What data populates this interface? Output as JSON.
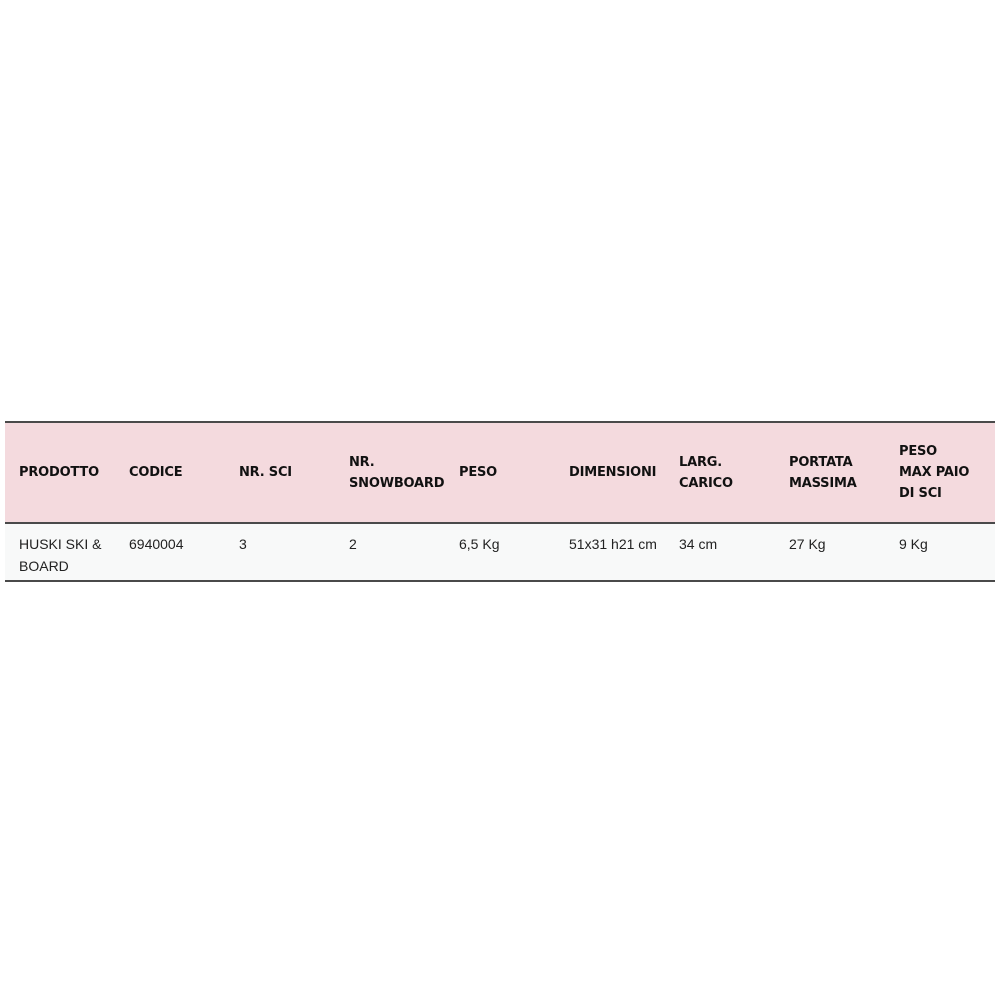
{
  "table": {
    "headers": [
      "PRODOTTO",
      "CODICE",
      "NR. SCI",
      "NR. SNOWBOARD",
      "PESO",
      "DIMENSIONI",
      "LARG. CARICO",
      "PORTATA MASSIMA",
      "PESO MAX PAIO DI SCI"
    ],
    "rows": [
      [
        "HUSKI SKI & BOARD",
        "6940004",
        "3",
        "2",
        "6,5 Kg",
        "51x31 h21 cm",
        "34 cm",
        "27 Kg",
        "9 Kg"
      ]
    ],
    "colors": {
      "header_bg": "#f4dade",
      "row_bg": "#f8f9f9",
      "border": "#4a4a4a"
    }
  }
}
